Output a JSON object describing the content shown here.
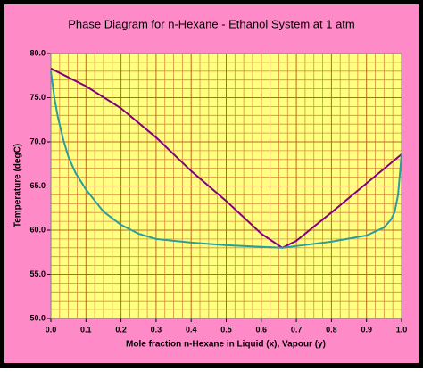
{
  "chart_data": {
    "type": "line",
    "title": "Phase Diagram for n-Hexane - Ethanol System at 1 atm",
    "x_label": "Mole fraction n-Hexane in Liquid (x), Vapour (y)",
    "y_label": "Temperature (degC)",
    "xlim": [
      0,
      1
    ],
    "ylim": [
      50,
      80
    ],
    "xticks": [
      {
        "value": 0,
        "label": "0.0"
      },
      {
        "value": 0.1,
        "label": "0.1"
      },
      {
        "value": 0.2,
        "label": "0.2"
      },
      {
        "value": 0.3,
        "label": "0.3"
      },
      {
        "value": 0.4,
        "label": "0.4"
      },
      {
        "value": 0.5,
        "label": "0.5"
      },
      {
        "value": 0.6,
        "label": "0.6"
      },
      {
        "value": 0.7,
        "label": "0.7"
      },
      {
        "value": 0.8,
        "label": "0.8"
      },
      {
        "value": 0.9,
        "label": "0.9"
      },
      {
        "value": 1,
        "label": "1.0"
      }
    ],
    "yticks": [
      {
        "value": 50,
        "label": "50.0"
      },
      {
        "value": 55,
        "label": "55.0"
      },
      {
        "value": 60,
        "label": "60.0"
      },
      {
        "value": 65,
        "label": "65.0"
      },
      {
        "value": 70,
        "label": "70.0"
      },
      {
        "value": 75,
        "label": "75.0"
      },
      {
        "value": 80,
        "label": "80.0"
      }
    ],
    "xminorticks": [
      0.025,
      0.05,
      0.075,
      0.125,
      0.15,
      0.175,
      0.225,
      0.25,
      0.275,
      0.325,
      0.35,
      0.375,
      0.425,
      0.45,
      0.475,
      0.525,
      0.55,
      0.575,
      0.625,
      0.65,
      0.675,
      0.725,
      0.75,
      0.775,
      0.825,
      0.85,
      0.875,
      0.925,
      0.95,
      0.975
    ],
    "yminorticks": [
      51,
      52,
      53,
      54,
      56,
      57,
      58,
      59,
      61,
      62,
      63,
      64,
      66,
      67,
      68,
      69,
      71,
      72,
      73,
      74,
      76,
      77,
      78,
      79
    ],
    "grid": true,
    "series": [
      {
        "color": "#800080",
        "x": [
          0,
          0.1,
          0.2,
          0.3,
          0.4,
          0.5,
          0.6,
          0.66,
          0.7,
          0.8,
          0.9,
          1
        ],
        "values": [
          78.3,
          76.3,
          73.8,
          70.5,
          66.7,
          63.3,
          59.6,
          58.0,
          58.8,
          62.0,
          65.3,
          68.6
        ]
      },
      {
        "color": "#2a9d9d",
        "x": [
          0,
          0.01,
          0.02,
          0.035,
          0.05,
          0.07,
          0.1,
          0.15,
          0.2,
          0.25,
          0.3,
          0.4,
          0.5,
          0.6,
          0.66,
          0.7,
          0.8,
          0.9,
          0.95,
          0.97,
          0.98,
          0.99,
          1
        ],
        "values": [
          78.0,
          75.0,
          72.8,
          70.3,
          68.3,
          66.5,
          64.6,
          62.1,
          60.6,
          59.6,
          59.0,
          58.6,
          58.3,
          58.1,
          58.0,
          58.2,
          58.7,
          59.4,
          60.3,
          61.2,
          62.0,
          64.0,
          68.6
        ]
      }
    ]
  }
}
